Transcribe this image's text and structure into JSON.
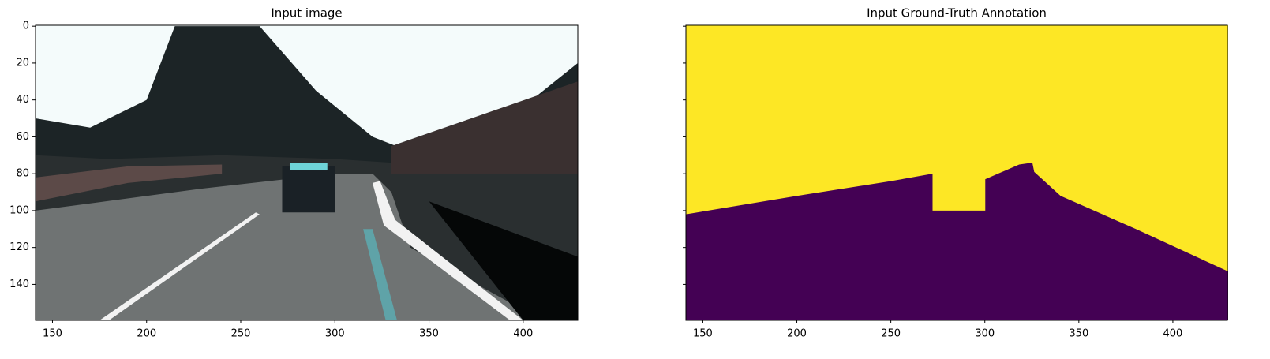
{
  "chart_data": [
    {
      "type": "image",
      "title": "Input image",
      "xlim": [
        141,
        429
      ],
      "xticks": [
        150,
        200,
        250,
        300,
        350,
        400
      ],
      "ylim": [
        159.5,
        -0.5
      ],
      "yticks": [
        0,
        20,
        40,
        60,
        80,
        100,
        120,
        140
      ],
      "ytick_labels": true
    },
    {
      "type": "image",
      "title": "Input Ground-Truth Annotation",
      "xlim": [
        141,
        429
      ],
      "xticks": [
        150,
        200,
        250,
        300,
        350,
        400
      ],
      "ylim": [
        159.5,
        -0.5
      ],
      "yticks": [
        0,
        20,
        40,
        60,
        80,
        100,
        120,
        140
      ],
      "ytick_labels": false
    }
  ]
}
